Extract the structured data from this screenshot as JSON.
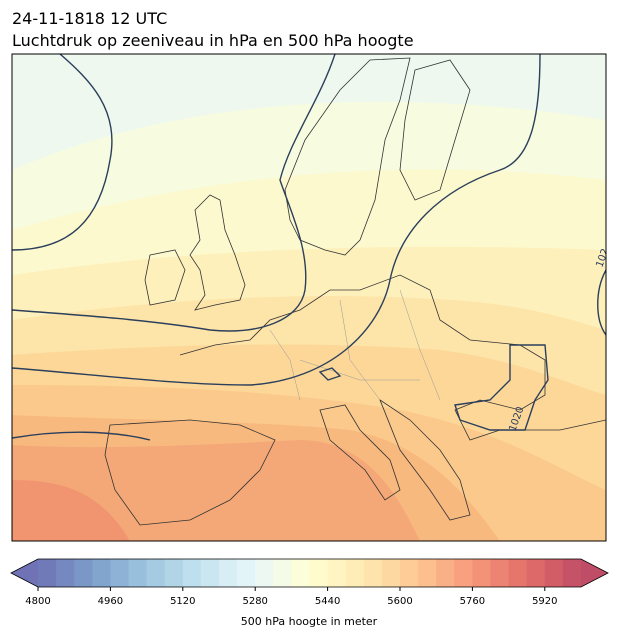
{
  "header": {
    "title": "24-11-1818 12 UTC",
    "subtitle": "Luchtdruk op zeeniveau in hPa en 500 hPa hoogte"
  },
  "map": {
    "contour_labels": [
      "1020",
      "102"
    ]
  },
  "colorbar": {
    "lim": [
      4800,
      6000
    ],
    "ticks": [
      4800,
      4960,
      5120,
      5280,
      5440,
      5600,
      5760,
      5920
    ],
    "label": "500 hPa hoogte in meter",
    "extend": "both"
  }
}
